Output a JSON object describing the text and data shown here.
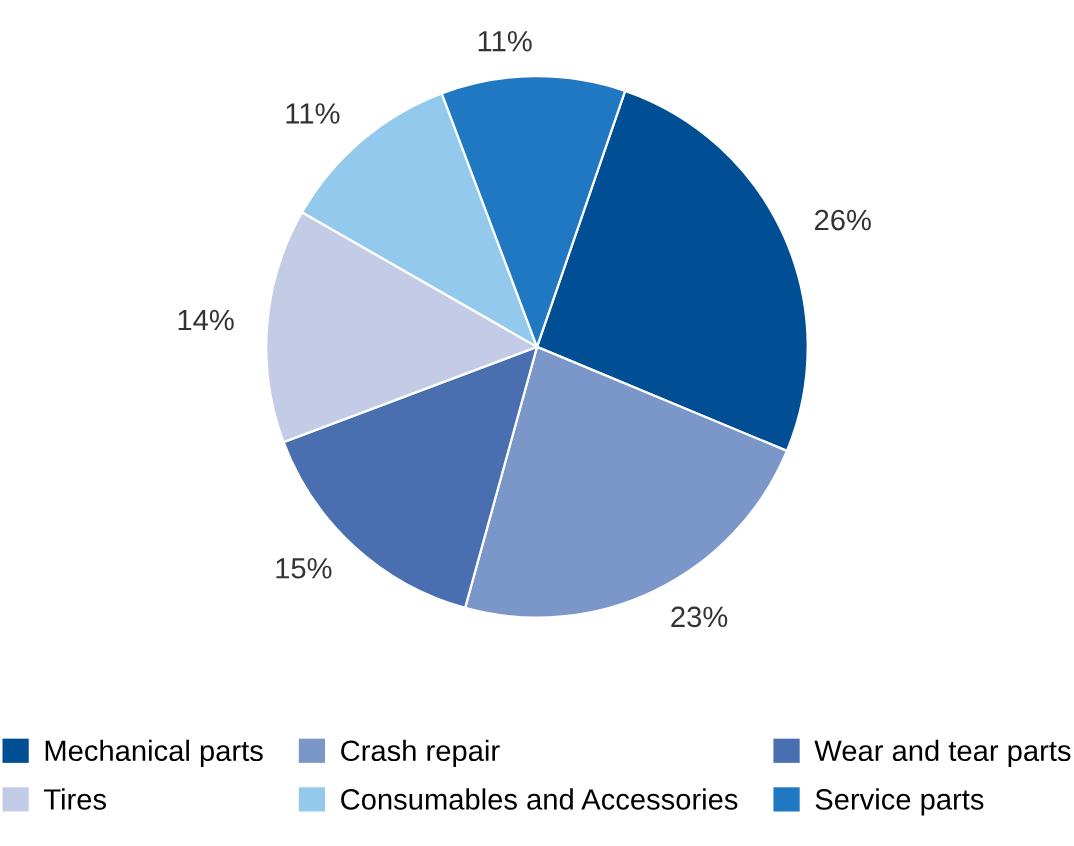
{
  "chart_data": {
    "type": "pie",
    "categories": [
      "Mechanical parts",
      "Crash repair",
      "Wear and tear parts",
      "Tires",
      "Consumables and Accessories",
      "Service parts"
    ],
    "values": [
      26,
      23,
      15,
      14,
      11,
      11
    ],
    "colors": [
      "#004f95",
      "#7b96c8",
      "#4a6fb0",
      "#c3cbe6",
      "#93c9ec",
      "#1f78c1"
    ],
    "value_labels": [
      "26%",
      "23%",
      "15%",
      "14%",
      "11%",
      "11%"
    ],
    "legend": "bottom"
  }
}
